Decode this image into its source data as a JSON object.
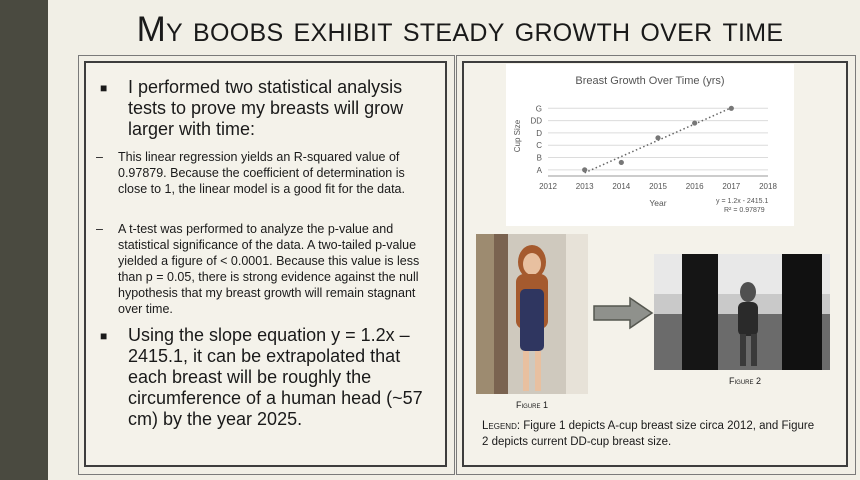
{
  "slide": {
    "title": "My boobs exhibit steady growth over time"
  },
  "left": {
    "bullet1": "I performed two statistical analysis tests to prove my breasts will grow larger with time:",
    "sub1": "This linear regression yields an R-squared value of 0.97879. Because the coefficient of determination is close to 1, the linear model is a good fit for the data.",
    "sub2": "A t-test was performed to analyze the p-value and statistical significance of the data. A two-tailed p-value yielded a figure of < 0.0001. Because this value is less than p = 0.05, there is strong evidence against the null hypothesis that my breast growth will remain stagnant over time.",
    "bullet2": "Using the slope equation y = 1.2x – 2415.1, it can be extrapolated that each breast will be roughly the circumference of a human head (~57 cm) by the year 2025.",
    "bullet_mark": "■",
    "sub_mark": "–"
  },
  "chart_data": {
    "type": "scatter",
    "title": "Breast Growth Over Time (yrs)",
    "xlabel": "Year",
    "ylabel": "Cup Size",
    "x_ticks": [
      "2012",
      "2013",
      "2014",
      "2015",
      "2016",
      "2017",
      "2018"
    ],
    "y_ticks": [
      "A",
      "B",
      "C",
      "D",
      "DD",
      "G"
    ],
    "x": [
      2013,
      2014,
      2015,
      2016,
      2017
    ],
    "y": [
      1,
      1.6,
      3.6,
      4.8,
      6
    ],
    "xlim": [
      2012,
      2018
    ],
    "ylim": [
      0.5,
      7
    ],
    "trendline": "dotted",
    "equation": "y = 1.2x - 2415.1",
    "r_squared": "R² = 0.97879",
    "grid": "horizontal"
  },
  "figures": {
    "fig1_caption": "Figure 1",
    "fig2_caption": "Figure 2"
  },
  "legend": {
    "label": "Legend",
    "text": ": Figure 1 depicts A-cup breast size circa 2012, and Figure 2 depicts current DD-cup breast size."
  }
}
